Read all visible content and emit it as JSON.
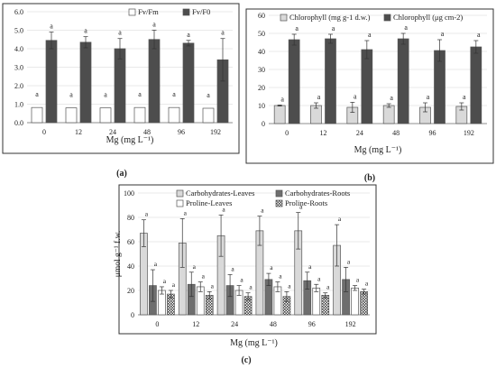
{
  "chart_data": [
    {
      "panel_label": "(a)",
      "type": "bar",
      "categories": [
        "0",
        "12",
        "24",
        "48",
        "96",
        "192"
      ],
      "xlabel": "Mg (mg L⁻¹)",
      "ylim": [
        0,
        6
      ],
      "yticks": [
        "0.0",
        "1.0",
        "2.0",
        "3.0",
        "4.0",
        "5.0",
        "6.0"
      ],
      "legend_position": "top-right",
      "series": [
        {
          "name": "Fv/Fm",
          "values": [
            0.82,
            0.8,
            0.8,
            0.82,
            0.82,
            0.78
          ],
          "errors": [
            0,
            0,
            0,
            0,
            0,
            0
          ],
          "letters": [
            "a",
            "a",
            "a",
            "a",
            "a",
            "a"
          ],
          "color": "#ffffff"
        },
        {
          "name": "Fv/F0",
          "values": [
            4.45,
            4.35,
            4.0,
            4.5,
            4.3,
            3.4
          ],
          "errors": [
            0.45,
            0.3,
            0.55,
            0.5,
            0.15,
            1.15
          ],
          "letters": [
            "a",
            "a",
            "a",
            "a",
            "a",
            "a"
          ],
          "color": "#4d4d4d"
        }
      ]
    },
    {
      "panel_label": "(b)",
      "type": "bar",
      "categories": [
        "0",
        "12",
        "24",
        "48",
        "96",
        "192"
      ],
      "xlabel": "Mg (mg L⁻¹)",
      "ylim": [
        0,
        60
      ],
      "yticks": [
        "0",
        "10",
        "20",
        "30",
        "40",
        "50",
        "60"
      ],
      "legend_position": "top",
      "series": [
        {
          "name": "Chlorophyll (mg g-1 d.w.)",
          "values": [
            10,
            10,
            9,
            10,
            9,
            9.5
          ],
          "errors": [
            0.3,
            1.5,
            2.8,
            1,
            2.5,
            2
          ],
          "letters": [
            "a",
            "a",
            "a",
            "a",
            "a",
            "a"
          ],
          "color": "#d9d9d9"
        },
        {
          "name": "Chlorophyll (μg cm-2)",
          "values": [
            46.5,
            47,
            41,
            47,
            40.5,
            42.5
          ],
          "errors": [
            3,
            2.5,
            5,
            3,
            6,
            3.5
          ],
          "letters": [
            "a",
            "a",
            "a",
            "a",
            "a",
            "a"
          ],
          "color": "#4d4d4d"
        }
      ]
    },
    {
      "panel_label": "(c)",
      "type": "bar",
      "categories": [
        "0",
        "12",
        "24",
        "48",
        "96",
        "192"
      ],
      "xlabel": "Mg (mg L⁻¹)",
      "ylabel": "μmol g⁻¹ f.w.",
      "ylim": [
        0,
        100
      ],
      "yticks": [
        "0",
        "20",
        "40",
        "60",
        "80",
        "100"
      ],
      "legend_position": "top",
      "series": [
        {
          "name": "Carbohydrates-Leaves",
          "values": [
            67,
            59,
            65,
            69,
            69,
            57
          ],
          "errors": [
            11,
            20,
            17,
            12,
            15,
            17
          ],
          "letters": [
            "a",
            "a",
            "a",
            "a",
            "a",
            "a"
          ],
          "color": "#d9d9d9"
        },
        {
          "name": "Carbohydrates-Roots",
          "values": [
            24,
            25,
            24,
            29,
            28,
            29
          ],
          "errors": [
            13,
            10,
            9,
            5,
            7,
            10
          ],
          "letters": [
            "a",
            "a",
            "a",
            "a",
            "a",
            "a"
          ],
          "color": "#6e6e6e"
        },
        {
          "name": "Proline-Leaves",
          "values": [
            20,
            23,
            20,
            23,
            22,
            22
          ],
          "errors": [
            3,
            4,
            4,
            4,
            3,
            2
          ],
          "letters": [
            "a",
            "a",
            "a",
            "a",
            "a",
            "a"
          ],
          "color": "#ffffff"
        },
        {
          "name": "Proline-Roots",
          "values": [
            17,
            16,
            15,
            15,
            16,
            19
          ],
          "errors": [
            3,
            3,
            3,
            4,
            2,
            2
          ],
          "letters": [
            "a",
            "a",
            "a",
            "a",
            "a",
            "a"
          ],
          "color": "hatch"
        }
      ]
    }
  ]
}
